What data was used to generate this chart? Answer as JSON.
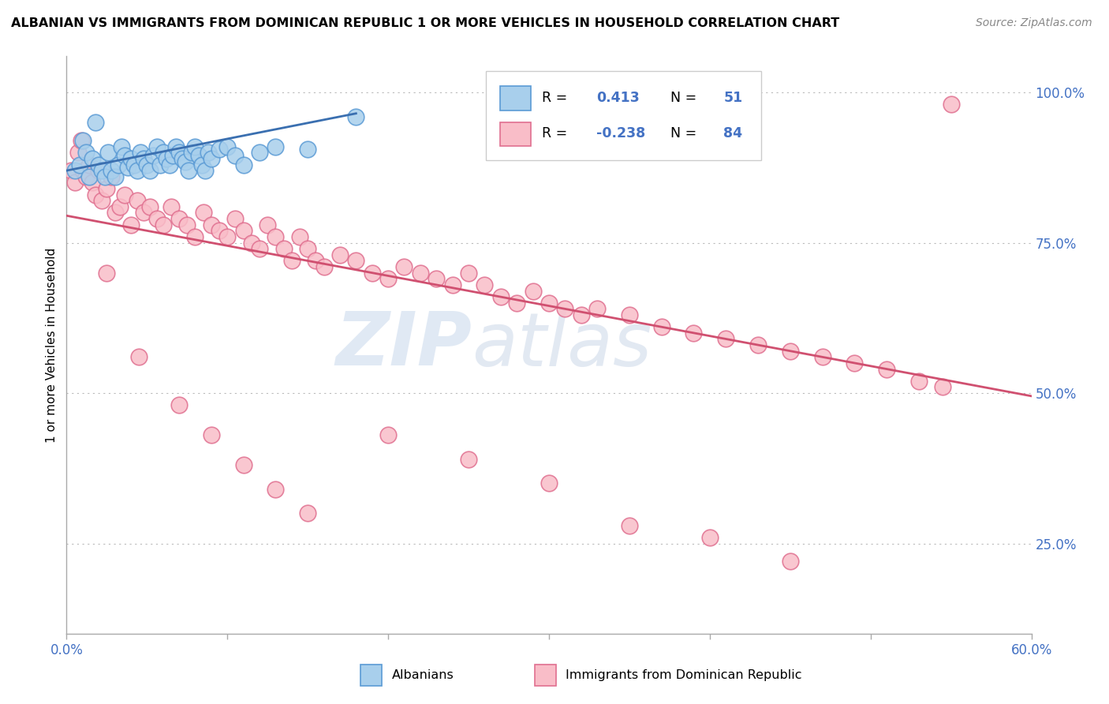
{
  "title": "ALBANIAN VS IMMIGRANTS FROM DOMINICAN REPUBLIC 1 OR MORE VEHICLES IN HOUSEHOLD CORRELATION CHART",
  "source": "Source: ZipAtlas.com",
  "ylabel": "1 or more Vehicles in Household",
  "xlim": [
    0.0,
    0.6
  ],
  "ylim": [
    0.1,
    1.06
  ],
  "ytick_positions": [
    0.25,
    0.5,
    0.75,
    1.0
  ],
  "ytick_labels": [
    "25.0%",
    "50.0%",
    "75.0%",
    "100.0%"
  ],
  "blue_R": 0.413,
  "blue_N": 51,
  "pink_R": -0.238,
  "pink_N": 84,
  "blue_color": "#A8CFEC",
  "pink_color": "#F9BDC8",
  "blue_edge_color": "#5B9BD5",
  "pink_edge_color": "#E07090",
  "blue_line_color": "#3A6FB0",
  "pink_line_color": "#D05070",
  "tick_color": "#4472C4",
  "watermark_color": "#D0DFF0",
  "legend_label_blue": "Albanians",
  "legend_label_pink": "Immigrants from Dominican Republic",
  "blue_scatter_x": [
    0.005,
    0.008,
    0.01,
    0.012,
    0.014,
    0.016,
    0.018,
    0.02,
    0.022,
    0.024,
    0.026,
    0.028,
    0.03,
    0.032,
    0.034,
    0.036,
    0.038,
    0.04,
    0.042,
    0.044,
    0.046,
    0.048,
    0.05,
    0.052,
    0.054,
    0.056,
    0.058,
    0.06,
    0.062,
    0.064,
    0.066,
    0.068,
    0.07,
    0.072,
    0.074,
    0.076,
    0.078,
    0.08,
    0.082,
    0.084,
    0.086,
    0.088,
    0.09,
    0.095,
    0.1,
    0.105,
    0.11,
    0.12,
    0.13,
    0.15,
    0.18
  ],
  "blue_scatter_y": [
    0.87,
    0.88,
    0.92,
    0.9,
    0.86,
    0.89,
    0.95,
    0.88,
    0.87,
    0.86,
    0.9,
    0.87,
    0.86,
    0.88,
    0.91,
    0.895,
    0.875,
    0.89,
    0.88,
    0.87,
    0.9,
    0.89,
    0.88,
    0.87,
    0.895,
    0.91,
    0.88,
    0.9,
    0.89,
    0.88,
    0.895,
    0.91,
    0.9,
    0.89,
    0.885,
    0.87,
    0.9,
    0.91,
    0.895,
    0.88,
    0.87,
    0.9,
    0.89,
    0.905,
    0.91,
    0.895,
    0.88,
    0.9,
    0.91,
    0.905,
    0.96
  ],
  "pink_scatter_x": [
    0.003,
    0.005,
    0.007,
    0.009,
    0.01,
    0.012,
    0.014,
    0.016,
    0.018,
    0.02,
    0.022,
    0.025,
    0.028,
    0.03,
    0.033,
    0.036,
    0.04,
    0.044,
    0.048,
    0.052,
    0.056,
    0.06,
    0.065,
    0.07,
    0.075,
    0.08,
    0.085,
    0.09,
    0.095,
    0.1,
    0.105,
    0.11,
    0.115,
    0.12,
    0.125,
    0.13,
    0.135,
    0.14,
    0.145,
    0.15,
    0.155,
    0.16,
    0.17,
    0.18,
    0.19,
    0.2,
    0.21,
    0.22,
    0.23,
    0.24,
    0.25,
    0.26,
    0.27,
    0.28,
    0.29,
    0.3,
    0.31,
    0.32,
    0.33,
    0.35,
    0.37,
    0.39,
    0.41,
    0.43,
    0.45,
    0.47,
    0.49,
    0.51,
    0.53,
    0.545,
    0.025,
    0.045,
    0.07,
    0.09,
    0.11,
    0.13,
    0.15,
    0.2,
    0.25,
    0.3,
    0.35,
    0.4,
    0.45,
    0.55
  ],
  "pink_scatter_y": [
    0.87,
    0.85,
    0.9,
    0.92,
    0.87,
    0.86,
    0.88,
    0.85,
    0.83,
    0.87,
    0.82,
    0.84,
    0.86,
    0.8,
    0.81,
    0.83,
    0.78,
    0.82,
    0.8,
    0.81,
    0.79,
    0.78,
    0.81,
    0.79,
    0.78,
    0.76,
    0.8,
    0.78,
    0.77,
    0.76,
    0.79,
    0.77,
    0.75,
    0.74,
    0.78,
    0.76,
    0.74,
    0.72,
    0.76,
    0.74,
    0.72,
    0.71,
    0.73,
    0.72,
    0.7,
    0.69,
    0.71,
    0.7,
    0.69,
    0.68,
    0.7,
    0.68,
    0.66,
    0.65,
    0.67,
    0.65,
    0.64,
    0.63,
    0.64,
    0.63,
    0.61,
    0.6,
    0.59,
    0.58,
    0.57,
    0.56,
    0.55,
    0.54,
    0.52,
    0.51,
    0.7,
    0.56,
    0.48,
    0.43,
    0.38,
    0.34,
    0.3,
    0.43,
    0.39,
    0.35,
    0.28,
    0.26,
    0.22,
    0.98
  ],
  "pink_trend_x0": 0.0,
  "pink_trend_y0": 0.795,
  "pink_trend_x1": 0.6,
  "pink_trend_y1": 0.495,
  "blue_trend_x0": 0.0,
  "blue_trend_y0": 0.87,
  "blue_trend_x1": 0.18,
  "blue_trend_y1": 0.965
}
